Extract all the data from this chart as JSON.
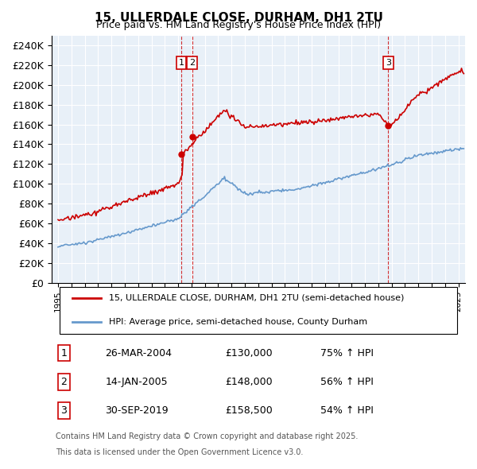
{
  "title": "15, ULLERDALE CLOSE, DURHAM, DH1 2TU",
  "subtitle": "Price paid vs. HM Land Registry's House Price Index (HPI)",
  "legend_label_red": "15, ULLERDALE CLOSE, DURHAM, DH1 2TU (semi-detached house)",
  "legend_label_blue": "HPI: Average price, semi-detached house, County Durham",
  "transactions": [
    {
      "num": 1,
      "date_label": "26-MAR-2004",
      "price": 130000,
      "pct": "75%",
      "dir": "↑",
      "x_year": 2004.23
    },
    {
      "num": 2,
      "date_label": "14-JAN-2005",
      "price": 148000,
      "pct": "56%",
      "dir": "↑",
      "x_year": 2005.04
    },
    {
      "num": 3,
      "date_label": "30-SEP-2019",
      "price": 158500,
      "pct": "54%",
      "dir": "↑",
      "x_year": 2019.75
    }
  ],
  "footnote1": "Contains HM Land Registry data © Crown copyright and database right 2025.",
  "footnote2": "This data is licensed under the Open Government Licence v3.0.",
  "ylim": [
    0,
    250000
  ],
  "yticks": [
    0,
    20000,
    40000,
    60000,
    80000,
    100000,
    120000,
    140000,
    160000,
    180000,
    200000,
    220000,
    240000
  ],
  "ytick_labels": [
    "£0",
    "£20K",
    "£40K",
    "£60K",
    "£80K",
    "£100K",
    "£120K",
    "£140K",
    "£160K",
    "£180K",
    "£200K",
    "£220K",
    "£240K"
  ],
  "xlim_start": 1994.5,
  "xlim_end": 2025.5,
  "background_color": "#e8f0f8",
  "plot_bg_color": "#e8f0f8",
  "red_color": "#cc0000",
  "blue_color": "#6699cc",
  "vline_color": "#cc0000",
  "grid_color": "#ffffff"
}
